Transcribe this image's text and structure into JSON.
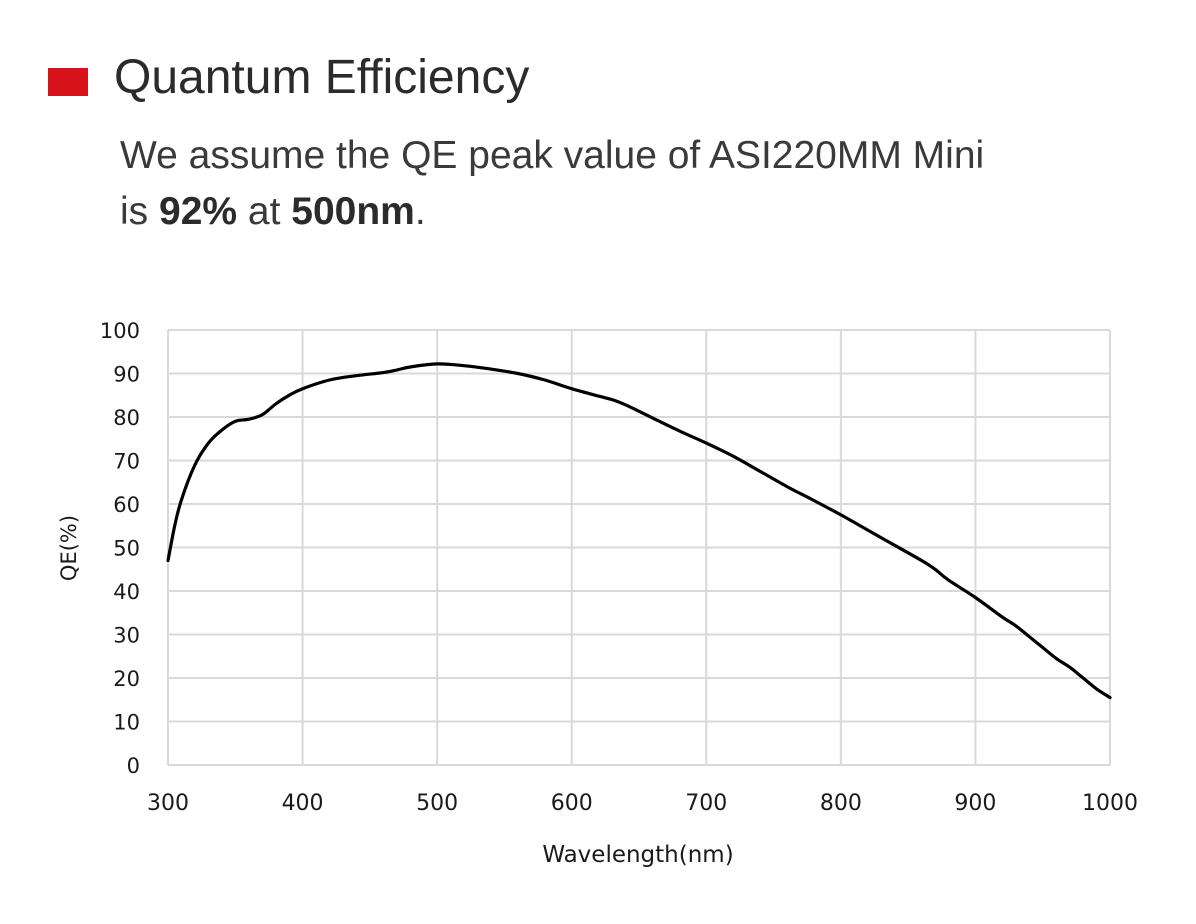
{
  "header": {
    "title": "Quantum Efficiency",
    "accent_color": "#d8121b",
    "desc_line1": "We assume the QE peak value of ASI220MM Mini",
    "desc_line2_prefix": "is ",
    "desc_peak_value": "92%",
    "desc_line2_mid": " at ",
    "desc_peak_wavelength": "500nm",
    "desc_line2_suffix": "."
  },
  "chart_data": {
    "type": "line",
    "title": "",
    "xlabel": "Wavelength(nm)",
    "ylabel": "QE(%)",
    "xlim": [
      300,
      1000
    ],
    "ylim": [
      0,
      100
    ],
    "xticks": [
      300,
      400,
      500,
      600,
      700,
      800,
      900,
      1000
    ],
    "yticks": [
      0,
      10,
      20,
      30,
      40,
      50,
      60,
      70,
      80,
      90,
      100
    ],
    "grid": true,
    "legend": "none",
    "line_color": "#000000",
    "series": [
      {
        "x": [
          300,
          305,
          310,
          320,
          330,
          340,
          350,
          360,
          370,
          380,
          390,
          400,
          420,
          440,
          460,
          470,
          480,
          500,
          520,
          540,
          560,
          580,
          600,
          620,
          630,
          640,
          660,
          680,
          700,
          720,
          740,
          760,
          780,
          800,
          820,
          840,
          860,
          870,
          880,
          900,
          920,
          930,
          940,
          950,
          960,
          970,
          980,
          990,
          1000
        ],
        "y": [
          47,
          55,
          61,
          69,
          74,
          77,
          79,
          79.5,
          80.5,
          83,
          85,
          86.5,
          88.5,
          89.5,
          90.2,
          90.8,
          91.5,
          92.2,
          91.8,
          91,
          90,
          88.5,
          86.5,
          84.8,
          84,
          82.8,
          79.8,
          76.8,
          74,
          71,
          67.5,
          64,
          60.8,
          57.5,
          54,
          50.5,
          47,
          45,
          42.5,
          38.5,
          34,
          32,
          29.5,
          27,
          24.5,
          22.5,
          20,
          17.5,
          15.5
        ]
      }
    ]
  }
}
